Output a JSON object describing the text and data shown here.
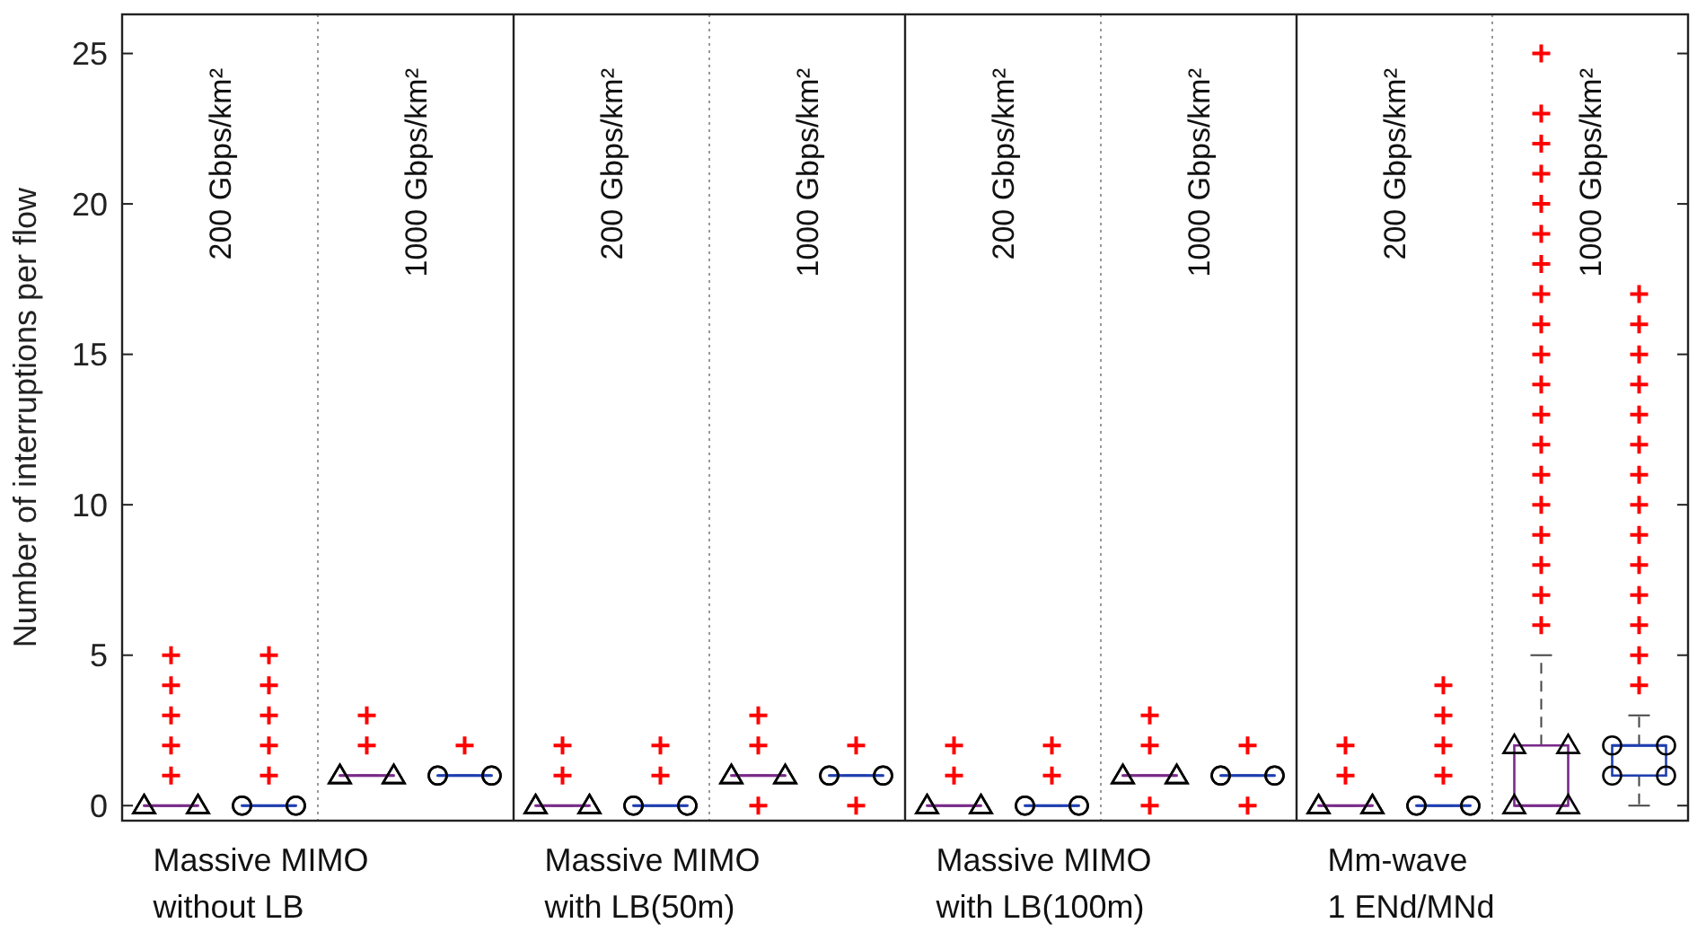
{
  "chart_data": {
    "type": "box",
    "ylabel": "Number of interruptions per flow",
    "categories": [
      "200 Gbps/km²",
      "1000 Gbps/km²",
      "200 Gbps/km²",
      "1000 Gbps/km²",
      "200 Gbps/km²",
      "1000 Gbps/km²",
      "200 Gbps/km²",
      "1000 Gbps/km²"
    ],
    "series": [
      {
        "color": "#7a2a8a",
        "marker": "triangle",
        "boxes": [
          {
            "low": 0,
            "q1": 0,
            "median": 0,
            "q3": 0,
            "high": 0,
            "outliers": [
              1,
              2,
              3,
              4,
              5
            ]
          },
          {
            "low": 1,
            "q1": 1,
            "median": 1,
            "q3": 1,
            "high": 1,
            "outliers": [
              2,
              3
            ]
          },
          {
            "low": 0,
            "q1": 0,
            "median": 0,
            "q3": 0,
            "high": 0,
            "outliers": [
              1,
              2
            ]
          },
          {
            "low": 1,
            "q1": 1,
            "median": 1,
            "q3": 1,
            "high": 1,
            "outliers": [
              0,
              2,
              3
            ]
          },
          {
            "low": 0,
            "q1": 0,
            "median": 0,
            "q3": 0,
            "high": 0,
            "outliers": [
              1,
              2
            ]
          },
          {
            "low": 1,
            "q1": 1,
            "median": 1,
            "q3": 1,
            "high": 1,
            "outliers": [
              0,
              2,
              3
            ]
          },
          {
            "low": 0,
            "q1": 0,
            "median": 0,
            "q3": 0,
            "high": 0,
            "outliers": [
              1,
              2
            ]
          },
          {
            "low": 0,
            "q1": 0,
            "median": 0,
            "q3": 2,
            "high": 5,
            "outliers": [
              6,
              7,
              8,
              9,
              10,
              11,
              12,
              13,
              14,
              15,
              16,
              17,
              18,
              19,
              20,
              21,
              22,
              23,
              25
            ]
          }
        ]
      },
      {
        "color": "#1f3fb0",
        "marker": "circle",
        "boxes": [
          {
            "low": 0,
            "q1": 0,
            "median": 0,
            "q3": 0,
            "high": 0,
            "outliers": [
              1,
              2,
              3,
              4,
              5
            ]
          },
          {
            "low": 1,
            "q1": 1,
            "median": 1,
            "q3": 1,
            "high": 1,
            "outliers": [
              2
            ]
          },
          {
            "low": 0,
            "q1": 0,
            "median": 0,
            "q3": 0,
            "high": 0,
            "outliers": [
              1,
              2
            ]
          },
          {
            "low": 1,
            "q1": 1,
            "median": 1,
            "q3": 1,
            "high": 1,
            "outliers": [
              0,
              2
            ]
          },
          {
            "low": 0,
            "q1": 0,
            "median": 0,
            "q3": 0,
            "high": 0,
            "outliers": [
              1,
              2
            ]
          },
          {
            "low": 1,
            "q1": 1,
            "median": 1,
            "q3": 1,
            "high": 1,
            "outliers": [
              0,
              2
            ]
          },
          {
            "low": 0,
            "q1": 0,
            "median": 0,
            "q3": 0,
            "high": 0,
            "outliers": [
              1,
              2,
              3,
              4
            ]
          },
          {
            "low": 0,
            "q1": 1,
            "median": 2,
            "q3": 2,
            "high": 3,
            "outliers": [
              4,
              5,
              6,
              7,
              8,
              9,
              10,
              11,
              12,
              13,
              14,
              15,
              16,
              17
            ]
          }
        ]
      }
    ],
    "ylim": [
      -0.5,
      26.3
    ],
    "yticks": [
      0,
      5,
      10,
      15,
      20,
      25
    ],
    "annotations": [
      "Massive MIMO\nwithout LB",
      "Massive MIMO\nwith LB(50m)",
      "Massive MIMO\nwith LB(100m)",
      "Mm-wave\n1 ENd/MNd"
    ]
  }
}
